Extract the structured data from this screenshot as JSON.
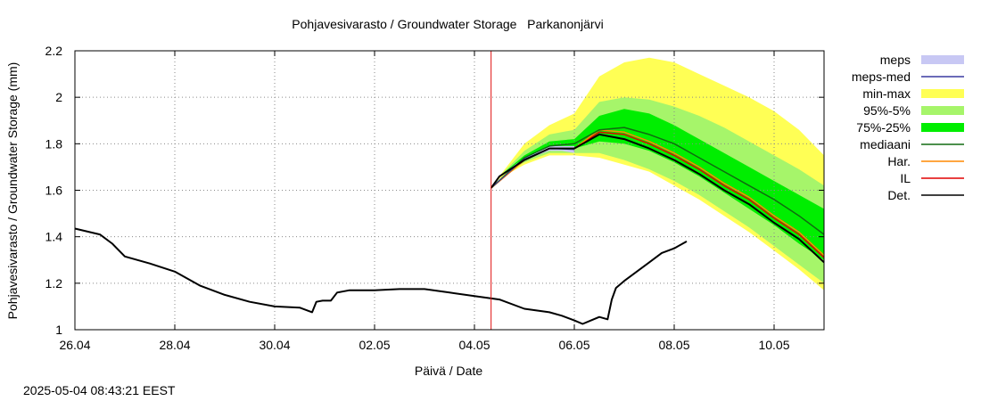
{
  "timestamp": "2025-05-04 08:43:21 EEST",
  "chart_data": {
    "type": "line",
    "title": "Pohjavesivarasto / Groundwater Storage   Parkanonjärvi",
    "xlabel": "Päivä / Date",
    "ylabel": "Pohjavesivarasto / Groundwater Storage (mm)",
    "x_range": [
      "2025-04-26",
      "2025-05-11"
    ],
    "ylim": [
      1,
      2.2
    ],
    "x_ticks": [
      {
        "date": "2025-04-26",
        "label": "26.04"
      },
      {
        "date": "2025-04-28",
        "label": "28.04"
      },
      {
        "date": "2025-04-30",
        "label": "30.04"
      },
      {
        "date": "2025-05-02",
        "label": "02.05"
      },
      {
        "date": "2025-05-04",
        "label": "04.05"
      },
      {
        "date": "2025-05-06",
        "label": "06.05"
      },
      {
        "date": "2025-05-08",
        "label": "08.05"
      },
      {
        "date": "2025-05-10",
        "label": "10.05"
      }
    ],
    "y_ticks": [
      {
        "value": 1,
        "label": "1"
      },
      {
        "value": 1.2,
        "label": "1.2"
      },
      {
        "value": 1.4,
        "label": "1.4"
      },
      {
        "value": 1.6,
        "label": "1.6"
      },
      {
        "value": 1.8,
        "label": "1.8"
      },
      {
        "value": 2,
        "label": "2"
      },
      {
        "value": 2.2,
        "label": "2.2"
      }
    ],
    "grid": true,
    "legend_position": "right",
    "forecast_start": "2025-05-04 08:00",
    "forecast_line_color": "#e01010",
    "legend": [
      {
        "label": "meps",
        "kind": "band",
        "color": "#c8c8f4"
      },
      {
        "label": "meps-med",
        "kind": "line",
        "color": "#3a3aa0"
      },
      {
        "label": "min-max",
        "kind": "band",
        "color": "#ffff55"
      },
      {
        "label": "95%-5%",
        "kind": "band",
        "color": "#a6f56a"
      },
      {
        "label": "75%-25%",
        "kind": "band",
        "color": "#00ee00"
      },
      {
        "label": "mediaani",
        "kind": "line",
        "color": "#106b10"
      },
      {
        "label": "Har.",
        "kind": "line",
        "color": "#ff8800"
      },
      {
        "label": "IL",
        "kind": "line",
        "color": "#e00000"
      },
      {
        "label": "Det.",
        "kind": "line",
        "color": "#000000"
      }
    ],
    "bands": [
      {
        "name": "min-max",
        "color": "#ffff55",
        "points": [
          [
            "2025-05-04 08:00",
            1.61,
            1.61
          ],
          [
            "2025-05-04 12:00",
            1.65,
            1.66
          ],
          [
            "2025-05-05 00:00",
            1.71,
            1.8
          ],
          [
            "2025-05-05 12:00",
            1.75,
            1.88
          ],
          [
            "2025-05-06 00:00",
            1.75,
            1.93
          ],
          [
            "2025-05-06 12:00",
            1.74,
            2.09
          ],
          [
            "2025-05-07 00:00",
            1.71,
            2.15
          ],
          [
            "2025-05-07 12:00",
            1.68,
            2.17
          ],
          [
            "2025-05-08 00:00",
            1.62,
            2.15
          ],
          [
            "2025-05-08 12:00",
            1.56,
            2.1
          ],
          [
            "2025-05-09 00:00",
            1.49,
            2.05
          ],
          [
            "2025-05-09 12:00",
            1.42,
            2.0
          ],
          [
            "2025-05-10 00:00",
            1.34,
            1.94
          ],
          [
            "2025-05-10 12:00",
            1.26,
            1.86
          ],
          [
            "2025-05-11 00:00",
            1.17,
            1.75
          ]
        ]
      },
      {
        "name": "95%-5%",
        "color": "#a6f56a",
        "points": [
          [
            "2025-05-04 08:00",
            1.61,
            1.61
          ],
          [
            "2025-05-04 12:00",
            1.66,
            1.66
          ],
          [
            "2025-05-05 00:00",
            1.72,
            1.77
          ],
          [
            "2025-05-05 12:00",
            1.76,
            1.84
          ],
          [
            "2025-05-06 00:00",
            1.76,
            1.86
          ],
          [
            "2025-05-06 12:00",
            1.76,
            1.98
          ],
          [
            "2025-05-07 00:00",
            1.73,
            2.0
          ],
          [
            "2025-05-07 12:00",
            1.69,
            1.99
          ],
          [
            "2025-05-08 00:00",
            1.64,
            1.96
          ],
          [
            "2025-05-08 12:00",
            1.58,
            1.92
          ],
          [
            "2025-05-09 00:00",
            1.51,
            1.87
          ],
          [
            "2025-05-09 12:00",
            1.44,
            1.81
          ],
          [
            "2025-05-10 00:00",
            1.36,
            1.75
          ],
          [
            "2025-05-10 12:00",
            1.28,
            1.69
          ],
          [
            "2025-05-11 00:00",
            1.2,
            1.62
          ]
        ]
      },
      {
        "name": "75%-25%",
        "color": "#00ee00",
        "points": [
          [
            "2025-05-04 08:00",
            1.61,
            1.61
          ],
          [
            "2025-05-04 12:00",
            1.66,
            1.66
          ],
          [
            "2025-05-05 00:00",
            1.73,
            1.75
          ],
          [
            "2025-05-05 12:00",
            1.77,
            1.81
          ],
          [
            "2025-05-06 00:00",
            1.78,
            1.82
          ],
          [
            "2025-05-06 12:00",
            1.81,
            1.92
          ],
          [
            "2025-05-07 00:00",
            1.8,
            1.95
          ],
          [
            "2025-05-07 12:00",
            1.77,
            1.93
          ],
          [
            "2025-05-08 00:00",
            1.72,
            1.88
          ],
          [
            "2025-05-08 12:00",
            1.66,
            1.82
          ],
          [
            "2025-05-09 00:00",
            1.59,
            1.76
          ],
          [
            "2025-05-09 12:00",
            1.52,
            1.7
          ],
          [
            "2025-05-10 00:00",
            1.45,
            1.64
          ],
          [
            "2025-05-10 12:00",
            1.37,
            1.58
          ],
          [
            "2025-05-11 00:00",
            1.3,
            1.52
          ]
        ]
      },
      {
        "name": "meps",
        "color": "#c8c8f4",
        "points": [
          [
            "2025-05-04 08:00",
            1.61,
            1.61
          ],
          [
            "2025-05-04 12:00",
            1.66,
            1.66
          ],
          [
            "2025-05-05 00:00",
            1.73,
            1.74
          ],
          [
            "2025-05-05 12:00",
            1.77,
            1.79
          ],
          [
            "2025-05-05 18:00",
            1.77,
            1.79
          ],
          [
            "2025-05-06 00:00",
            1.76,
            1.79
          ]
        ]
      }
    ],
    "series": [
      {
        "name": "Det.",
        "color": "#000000",
        "width": 2,
        "points": [
          [
            "2025-04-26 00:00",
            1.435
          ],
          [
            "2025-04-26 12:00",
            1.41
          ],
          [
            "2025-04-26 18:00",
            1.37
          ],
          [
            "2025-04-27 00:00",
            1.315
          ],
          [
            "2025-04-27 12:00",
            1.285
          ],
          [
            "2025-04-28 00:00",
            1.25
          ],
          [
            "2025-04-28 12:00",
            1.19
          ],
          [
            "2025-04-29 00:00",
            1.15
          ],
          [
            "2025-04-29 12:00",
            1.12
          ],
          [
            "2025-04-30 00:00",
            1.1
          ],
          [
            "2025-04-30 12:00",
            1.095
          ],
          [
            "2025-04-30 18:00",
            1.075
          ],
          [
            "2025-04-30 20:00",
            1.12
          ],
          [
            "2025-04-30 23:00",
            1.125
          ],
          [
            "2025-05-01 03:00",
            1.125
          ],
          [
            "2025-05-01 06:00",
            1.16
          ],
          [
            "2025-05-01 12:00",
            1.17
          ],
          [
            "2025-05-02 00:00",
            1.17
          ],
          [
            "2025-05-02 12:00",
            1.175
          ],
          [
            "2025-05-03 00:00",
            1.175
          ],
          [
            "2025-05-03 12:00",
            1.16
          ],
          [
            "2025-05-04 00:00",
            1.145
          ],
          [
            "2025-05-04 12:00",
            1.13
          ],
          [
            "2025-05-05 00:00",
            1.09
          ],
          [
            "2025-05-05 12:00",
            1.075
          ],
          [
            "2025-05-05 18:00",
            1.06
          ],
          [
            "2025-05-06 00:00",
            1.04
          ],
          [
            "2025-05-06 04:00",
            1.025
          ],
          [
            "2025-05-06 08:00",
            1.04
          ],
          [
            "2025-05-06 12:00",
            1.055
          ],
          [
            "2025-05-06 16:00",
            1.045
          ],
          [
            "2025-05-06 18:00",
            1.13
          ],
          [
            "2025-05-06 20:00",
            1.18
          ],
          [
            "2025-05-07 00:00",
            1.21
          ],
          [
            "2025-05-07 06:00",
            1.25
          ],
          [
            "2025-05-07 12:00",
            1.29
          ],
          [
            "2025-05-07 18:00",
            1.33
          ],
          [
            "2025-05-08 00:00",
            1.35
          ],
          [
            "2025-05-08 04:00",
            1.37
          ],
          [
            "2025-05-08 06:00",
            1.38
          ]
        ]
      },
      {
        "name": "IL",
        "color": "#e00000",
        "width": 1.5,
        "points": [
          [
            "2025-05-04 08:00",
            1.61
          ],
          [
            "2025-05-05 00:00",
            1.73
          ],
          [
            "2025-05-05 12:00",
            1.78
          ],
          [
            "2025-05-06 00:00",
            1.78
          ],
          [
            "2025-05-06 12:00",
            1.85
          ],
          [
            "2025-05-07 00:00",
            1.84
          ],
          [
            "2025-05-07 12:00",
            1.8
          ],
          [
            "2025-05-08 00:00",
            1.75
          ],
          [
            "2025-05-08 12:00",
            1.69
          ],
          [
            "2025-05-09 00:00",
            1.62
          ],
          [
            "2025-05-09 12:00",
            1.56
          ],
          [
            "2025-05-10 00:00",
            1.48
          ],
          [
            "2025-05-10 12:00",
            1.41
          ],
          [
            "2025-05-11 00:00",
            1.31
          ]
        ]
      },
      {
        "name": "Har.",
        "color": "#ff8800",
        "width": 1.5,
        "points": [
          [
            "2025-05-04 08:00",
            1.61
          ],
          [
            "2025-05-05 00:00",
            1.73
          ],
          [
            "2025-05-05 12:00",
            1.78
          ],
          [
            "2025-05-06 00:00",
            1.78
          ],
          [
            "2025-05-06 12:00",
            1.86
          ],
          [
            "2025-05-07 00:00",
            1.85
          ],
          [
            "2025-05-07 12:00",
            1.81
          ],
          [
            "2025-05-08 00:00",
            1.76
          ],
          [
            "2025-05-08 12:00",
            1.7
          ],
          [
            "2025-05-09 00:00",
            1.63
          ],
          [
            "2025-05-09 12:00",
            1.57
          ],
          [
            "2025-05-10 00:00",
            1.49
          ],
          [
            "2025-05-10 12:00",
            1.42
          ],
          [
            "2025-05-11 00:00",
            1.32
          ]
        ]
      },
      {
        "name": "mediaani",
        "color": "#106b10",
        "width": 1.5,
        "points": [
          [
            "2025-05-04 08:00",
            1.61
          ],
          [
            "2025-05-05 00:00",
            1.74
          ],
          [
            "2025-05-05 12:00",
            1.79
          ],
          [
            "2025-05-06 00:00",
            1.8
          ],
          [
            "2025-05-06 12:00",
            1.86
          ],
          [
            "2025-05-07 00:00",
            1.87
          ],
          [
            "2025-05-07 12:00",
            1.84
          ],
          [
            "2025-05-08 00:00",
            1.8
          ],
          [
            "2025-05-08 12:00",
            1.74
          ],
          [
            "2025-05-09 00:00",
            1.68
          ],
          [
            "2025-05-09 12:00",
            1.62
          ],
          [
            "2025-05-10 00:00",
            1.56
          ],
          [
            "2025-05-10 12:00",
            1.49
          ],
          [
            "2025-05-11 00:00",
            1.41
          ]
        ]
      },
      {
        "name": "meps-med",
        "color": "#3a3aa0",
        "width": 1,
        "points": [
          [
            "2025-05-04 08:00",
            1.61
          ],
          [
            "2025-05-05 00:00",
            1.735
          ],
          [
            "2025-05-05 12:00",
            1.78
          ],
          [
            "2025-05-06 00:00",
            1.775
          ]
        ]
      },
      {
        "name": "Det.",
        "color": "#000000",
        "width": 2,
        "points": [
          [
            "2025-05-04 08:00",
            1.61
          ],
          [
            "2025-05-04 12:00",
            1.66
          ],
          [
            "2025-05-05 00:00",
            1.73
          ],
          [
            "2025-05-05 12:00",
            1.78
          ],
          [
            "2025-05-06 00:00",
            1.78
          ],
          [
            "2025-05-06 12:00",
            1.84
          ],
          [
            "2025-05-07 00:00",
            1.82
          ],
          [
            "2025-05-07 12:00",
            1.78
          ],
          [
            "2025-05-08 00:00",
            1.73
          ],
          [
            "2025-05-08 12:00",
            1.67
          ],
          [
            "2025-05-09 00:00",
            1.6
          ],
          [
            "2025-05-09 12:00",
            1.54
          ],
          [
            "2025-05-10 00:00",
            1.46
          ],
          [
            "2025-05-10 12:00",
            1.39
          ],
          [
            "2025-05-11 00:00",
            1.29
          ]
        ]
      }
    ]
  }
}
